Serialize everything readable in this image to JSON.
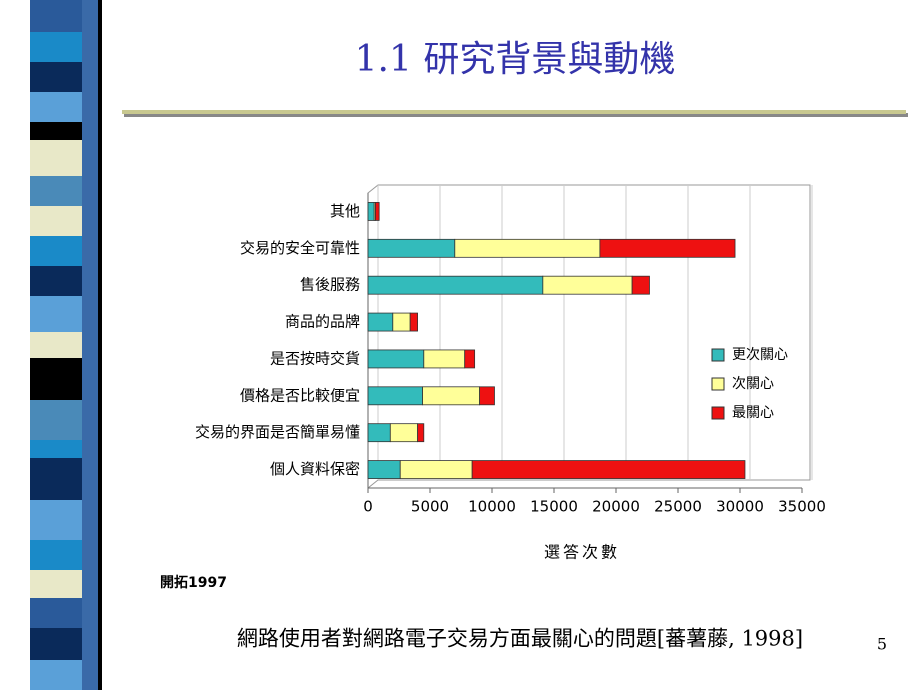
{
  "slide": {
    "title": "1.1 研究背景與動機",
    "source_note": "開拓1997",
    "caption": "網路使用者對網路電子交易方面最關心的問題[蕃薯藤, 1998]",
    "page_number": "5"
  },
  "chart_data": {
    "type": "bar",
    "orientation": "horizontal",
    "stacked": true,
    "categories": [
      "其他",
      "交易的安全可靠性",
      "售後服務",
      "商品的品牌",
      "是否按時交貨",
      "價格是否比較便宜",
      "交易的界面是否簡單易懂",
      "個人資料保密"
    ],
    "series": [
      {
        "name": "更次關心",
        "color": "#33bbbb",
        "values": [
          500,
          7000,
          14100,
          2000,
          4500,
          4400,
          1800,
          2600
        ]
      },
      {
        "name": "次關心",
        "color": "#ffff99",
        "values": [
          100,
          11700,
          7200,
          1400,
          3300,
          4600,
          2200,
          5800
        ]
      },
      {
        "name": "最關心",
        "color": "#ee1111",
        "values": [
          300,
          10900,
          1400,
          600,
          800,
          1200,
          500,
          22000
        ]
      }
    ],
    "xlabel": "選答次數",
    "xlim": [
      0,
      35000
    ],
    "xticks": [
      0,
      5000,
      10000,
      15000,
      20000,
      25000,
      30000,
      35000
    ],
    "grid": true,
    "legend": "right"
  }
}
